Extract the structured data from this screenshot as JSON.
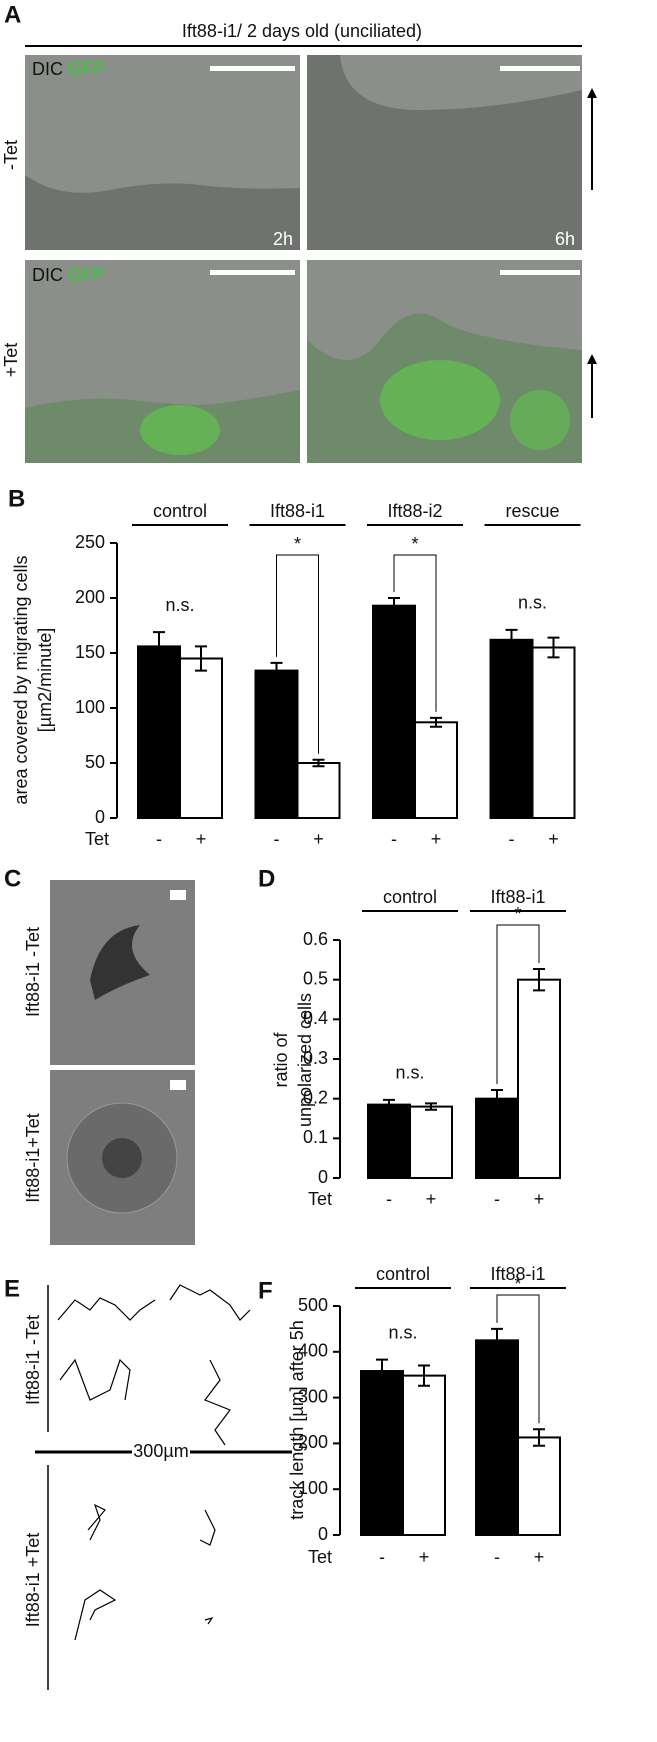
{
  "panel_a": {
    "label": "A",
    "title": "Ift88-i1/ 2 days old (unciliated)",
    "rows": [
      "-Tet",
      "+Tet"
    ],
    "channels": [
      "DIC",
      "GFP"
    ],
    "times": [
      "2h",
      "6h"
    ]
  },
  "chart_data": [
    {
      "type": "bar",
      "panel_label": "B",
      "categories": [
        "control",
        "Ift88-i1",
        "Ift88-i2",
        "rescue"
      ],
      "xlabel": "Tet",
      "ylabel": [
        "area covered by migrating cells",
        "[µm2/minute]"
      ],
      "series": [
        {
          "name": "-",
          "color": "#000000",
          "values": [
            156,
            134,
            193,
            162
          ],
          "errors": [
            13,
            7,
            7,
            9
          ]
        },
        {
          "name": "+",
          "color": "#ffffff",
          "values": [
            145,
            50,
            87,
            155
          ],
          "errors": [
            11,
            3,
            4,
            9
          ]
        }
      ],
      "annotations": [
        "n.s.",
        "*",
        "*",
        "n.s."
      ],
      "brackets": [
        false,
        true,
        true,
        false
      ],
      "ylim": [
        0,
        250
      ],
      "yticks": [
        0,
        50,
        100,
        150,
        200,
        250
      ]
    },
    {
      "type": "bar",
      "panel_label": "D",
      "categories": [
        "control",
        "Ift88-i1"
      ],
      "xlabel": "Tet",
      "ylabel": [
        "ratio of",
        "unpolarized cells"
      ],
      "series": [
        {
          "name": "-",
          "color": "#000000",
          "values": [
            0.185,
            0.2
          ],
          "errors": [
            0.012,
            0.022
          ]
        },
        {
          "name": "+",
          "color": "#ffffff",
          "values": [
            0.18,
            0.5
          ],
          "errors": [
            0.008,
            0.027
          ]
        }
      ],
      "annotations": [
        "n.s.",
        "*"
      ],
      "brackets": [
        false,
        true
      ],
      "ylim": [
        0,
        0.6
      ],
      "yticks": [
        0,
        0.1,
        0.2,
        0.3,
        0.4,
        0.5,
        0.6
      ]
    },
    {
      "type": "bar",
      "panel_label": "F",
      "categories": [
        "control",
        "Ift88-i1"
      ],
      "xlabel": "Tet",
      "ylabel": [
        "track length [µm] after 5h"
      ],
      "series": [
        {
          "name": "-",
          "color": "#000000",
          "values": [
            358,
            425
          ],
          "errors": [
            25,
            25
          ]
        },
        {
          "name": "+",
          "color": "#ffffff",
          "values": [
            348,
            213
          ],
          "errors": [
            22,
            18
          ]
        }
      ],
      "annotations": [
        "n.s.",
        "*"
      ],
      "brackets": [
        false,
        true
      ],
      "ylim": [
        0,
        500
      ],
      "yticks": [
        0,
        100,
        200,
        300,
        400,
        500
      ]
    }
  ],
  "panel_c": {
    "label": "C",
    "rows": [
      "Ift88-i1 -Tet",
      "Ift88-i1+Tet"
    ]
  },
  "panel_e": {
    "label": "E",
    "rows": [
      "Ift88-i1 -Tet",
      "Ift88-i1 +Tet"
    ],
    "scale_label": "300µm"
  }
}
